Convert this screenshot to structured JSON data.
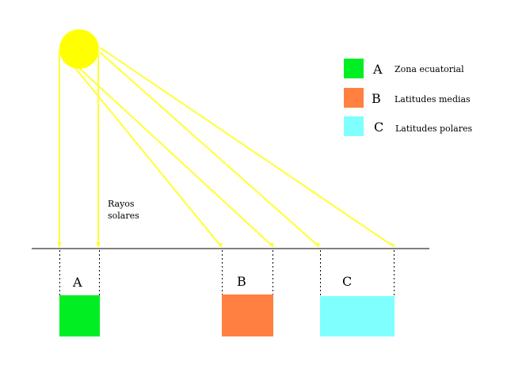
{
  "colors": {
    "sun": "#ffff00",
    "rays": "#ffff33",
    "A": "#00ee22",
    "B": "#ff8040",
    "C": "#80ffff"
  },
  "rays_label": "Rayos solares",
  "rays_label_lines": [
    "Rayos",
    "solares"
  ],
  "legend": [
    {
      "letter": "A",
      "label": "Zona ecuatorial"
    },
    {
      "letter": "B",
      "label": "Latitudes medias"
    },
    {
      "letter": "C",
      "label": "Latitudes polares"
    }
  ],
  "zones": [
    {
      "letter": "A"
    },
    {
      "letter": "B"
    },
    {
      "letter": "C"
    }
  ]
}
